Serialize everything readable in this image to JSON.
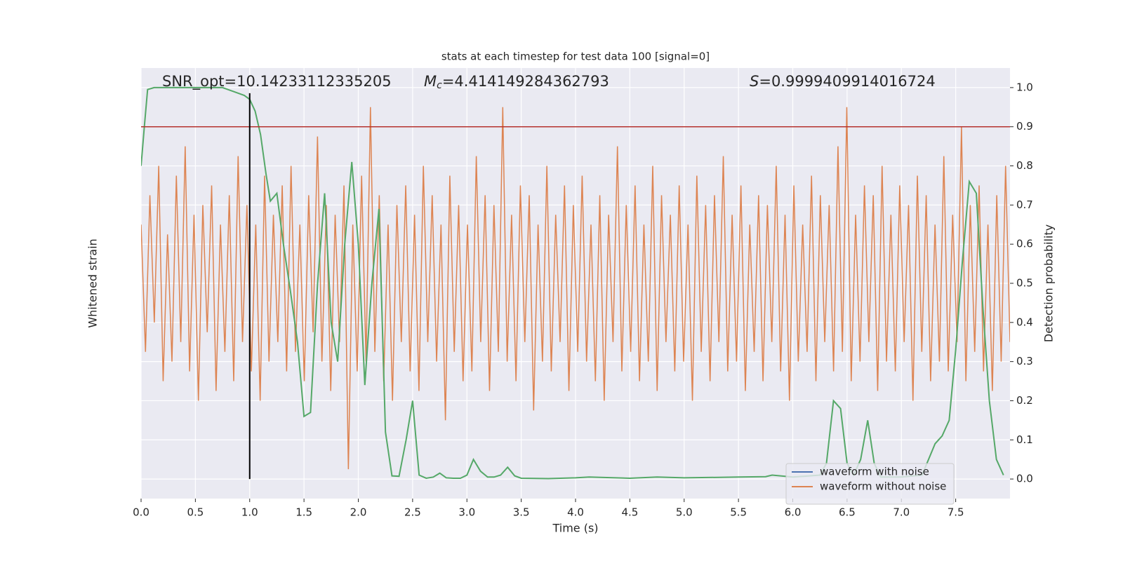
{
  "chart_data": {
    "type": "line",
    "title": "stats at each timestep for test data 100 [signal=0]",
    "xlabel": "Time (s)",
    "ylabel": "Detection probability",
    "y2label": "Whitened strain",
    "yaxis_side": "right",
    "xlim": [
      0,
      8
    ],
    "ylim": [
      -0.05,
      1.05
    ],
    "y2lim": [
      -1.1,
      1.1
    ],
    "grid": true,
    "legend": "lower right",
    "xticks": [
      {
        "value": 0,
        "label": "0.0"
      },
      {
        "value": 0.5,
        "label": "0.5"
      },
      {
        "value": 1,
        "label": "1.0"
      },
      {
        "value": 1.5,
        "label": "1.5"
      },
      {
        "value": 2,
        "label": "2.0"
      },
      {
        "value": 2.5,
        "label": "2.5"
      },
      {
        "value": 3,
        "label": "3.0"
      },
      {
        "value": 3.5,
        "label": "3.5"
      },
      {
        "value": 4,
        "label": "4.0"
      },
      {
        "value": 4.5,
        "label": "4.5"
      },
      {
        "value": 5,
        "label": "5.0"
      },
      {
        "value": 5.5,
        "label": "5.5"
      },
      {
        "value": 6,
        "label": "6.0"
      },
      {
        "value": 6.5,
        "label": "6.5"
      },
      {
        "value": 7,
        "label": "7.0"
      },
      {
        "value": 7.5,
        "label": "7.5"
      }
    ],
    "yticks": [
      {
        "value": 0,
        "label": "0.0"
      },
      {
        "value": 0.1,
        "label": "0.1"
      },
      {
        "value": 0.2,
        "label": "0.2"
      },
      {
        "value": 0.3,
        "label": "0.3"
      },
      {
        "value": 0.4,
        "label": "0.4"
      },
      {
        "value": 0.5,
        "label": "0.5"
      },
      {
        "value": 0.6,
        "label": "0.6"
      },
      {
        "value": 0.7,
        "label": "0.7"
      },
      {
        "value": 0.8,
        "label": "0.8"
      },
      {
        "value": 0.9,
        "label": "0.9"
      },
      {
        "value": 1,
        "label": "1.0"
      }
    ],
    "threshold": 0.9,
    "threshold_color": "#b5332e",
    "marker_x": 1,
    "marker_color": "#000000",
    "annotations": [
      {
        "text": "SNR_opt=10.14233112335205"
      },
      {
        "symbol": "M",
        "subscript": "c",
        "text": "=4.414149284362793"
      },
      {
        "symbol": "S",
        "text": "=0.9999409914016724"
      }
    ],
    "series": [
      {
        "name": "waveform with noise",
        "color": "#4c72b0"
      },
      {
        "name": "waveform without noise",
        "color": "#dd8452",
        "axis": "y2",
        "values": [
          0.3,
          -0.35,
          0.45,
          -0.2,
          0.6,
          -0.5,
          0.25,
          -0.4,
          0.55,
          -0.3,
          0.7,
          -0.45,
          0.35,
          -0.6,
          0.4,
          -0.25,
          0.5,
          -0.55,
          0.3,
          -0.35,
          0.45,
          -0.5,
          0.65,
          -0.3,
          0.4,
          -0.45,
          0.3,
          -0.6,
          0.55,
          -0.4,
          0.35,
          -0.3,
          0.5,
          -0.45,
          0.6,
          -0.35,
          0.3,
          -0.5,
          0.45,
          -0.25,
          0.75,
          -0.4,
          0.4,
          -0.55,
          0.35,
          -0.3,
          0.5,
          -0.95,
          0.3,
          -0.45,
          0.55,
          -0.4,
          0.9,
          -0.35,
          0.45,
          -0.5,
          0.3,
          -0.6,
          0.4,
          -0.3,
          0.5,
          -0.45,
          0.35,
          -0.55,
          0.6,
          -0.3,
          0.45,
          -0.4,
          0.3,
          -0.7,
          0.55,
          -0.35,
          0.4,
          -0.5,
          0.3,
          -0.45,
          0.65,
          -0.3,
          0.45,
          -0.55,
          0.4,
          -0.35,
          0.9,
          -0.4,
          0.35,
          -0.5,
          0.5,
          -0.3,
          0.45,
          -0.65,
          0.3,
          -0.4,
          0.6,
          -0.45,
          0.35,
          -0.3,
          0.5,
          -0.55,
          0.4,
          -0.35,
          0.55,
          -0.4,
          0.3,
          -0.5,
          0.45,
          -0.6,
          0.35,
          -0.3,
          0.7,
          -0.45,
          0.4,
          -0.35,
          0.5,
          -0.5,
          0.3,
          -0.4,
          0.6,
          -0.55,
          0.45,
          -0.3,
          0.35,
          -0.45,
          0.5,
          -0.4,
          0.3,
          -0.6,
          0.55,
          -0.35,
          0.4,
          -0.5,
          0.45,
          -0.3,
          0.65,
          -0.45,
          0.35,
          -0.4,
          0.5,
          -0.55,
          0.3,
          -0.35,
          0.45,
          -0.5,
          0.4,
          -0.3,
          0.6,
          -0.45,
          0.35,
          -0.6,
          0.5,
          -0.4,
          0.3,
          -0.35,
          0.55,
          -0.5,
          0.45,
          -0.3,
          0.4,
          -0.45,
          0.7,
          -0.35,
          0.9,
          -0.5,
          0.35,
          -0.4,
          0.5,
          -0.3,
          0.45,
          -0.55,
          0.6,
          -0.4,
          0.35,
          -0.45,
          0.5,
          -0.3,
          0.4,
          -0.6,
          0.55,
          -0.35,
          0.45,
          -0.5,
          0.3,
          -0.4,
          0.65,
          -0.45,
          0.35,
          -0.3,
          0.8,
          -0.5,
          0.4,
          -0.35,
          0.5,
          -0.45,
          0.3,
          -0.55,
          0.45,
          -0.4,
          0.6,
          -0.3
        ]
      },
      {
        "name": null,
        "color": "#55a868",
        "x": [
          0,
          0.03,
          0.06,
          0.12,
          0.25,
          0.5,
          0.75,
          0.85,
          0.95,
          1.0,
          1.05,
          1.1,
          1.15,
          1.19,
          1.25,
          1.31,
          1.375,
          1.44,
          1.5,
          1.56,
          1.625,
          1.69,
          1.75,
          1.81,
          1.875,
          1.94,
          2.0,
          2.06,
          2.125,
          2.19,
          2.25,
          2.31,
          2.375,
          2.44,
          2.5,
          2.56,
          2.625,
          2.69,
          2.75,
          2.81,
          2.875,
          2.94,
          3.0,
          3.06,
          3.125,
          3.19,
          3.25,
          3.31,
          3.375,
          3.44,
          3.5,
          3.75,
          4.0,
          4.125,
          4.5,
          4.75,
          5.0,
          5.5,
          5.75,
          5.81,
          6.0,
          6.25,
          6.31,
          6.375,
          6.44,
          6.5,
          6.56,
          6.625,
          6.69,
          6.75,
          6.81,
          7.0,
          7.19,
          7.31,
          7.375,
          7.44,
          7.5,
          7.56,
          7.625,
          7.69,
          7.75,
          7.81,
          7.875,
          7.94
        ],
        "values": [
          0.8,
          0.9,
          0.995,
          1.0,
          1.0,
          1.0,
          1.0,
          0.99,
          0.98,
          0.97,
          0.94,
          0.88,
          0.78,
          0.71,
          0.73,
          0.6,
          0.48,
          0.35,
          0.16,
          0.17,
          0.5,
          0.73,
          0.4,
          0.3,
          0.6,
          0.81,
          0.6,
          0.24,
          0.5,
          0.69,
          0.12,
          0.008,
          0.007,
          0.1,
          0.2,
          0.01,
          0.002,
          0.005,
          0.015,
          0.003,
          0.002,
          0.002,
          0.01,
          0.05,
          0.02,
          0.005,
          0.005,
          0.01,
          0.03,
          0.008,
          0.002,
          0.001,
          0.003,
          0.005,
          0.002,
          0.005,
          0.003,
          0.005,
          0.006,
          0.01,
          0.005,
          0.01,
          0.04,
          0.2,
          0.18,
          0.04,
          0.01,
          0.05,
          0.15,
          0.04,
          0.005,
          0.005,
          0.01,
          0.09,
          0.11,
          0.15,
          0.33,
          0.55,
          0.76,
          0.73,
          0.44,
          0.2,
          0.05,
          0.01
        ]
      }
    ]
  }
}
